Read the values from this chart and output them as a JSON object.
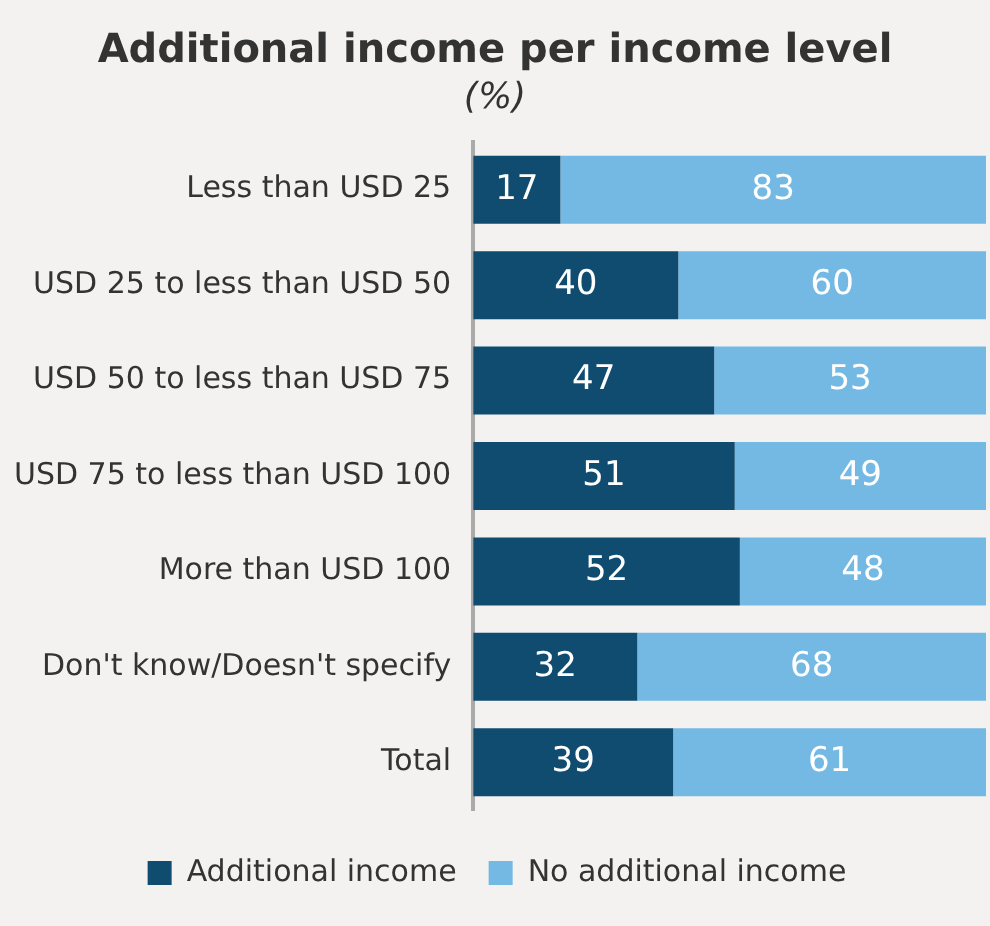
{
  "chart_data": {
    "type": "bar",
    "title": "Additional income per income level",
    "subtitle": "(%)",
    "orientation": "horizontal",
    "stacked": true,
    "categories": [
      "Less than USD 25",
      "USD 25 to less than USD 50",
      "USD 50 to less than USD 75",
      "USD 75 to less than USD 100",
      "More than USD 100",
      "Don't know/Doesn't specify",
      "Total"
    ],
    "series": [
      {
        "name": "Additional income",
        "color": "#0f4c70",
        "values": [
          17,
          40,
          47,
          51,
          52,
          32,
          39
        ]
      },
      {
        "name": "No additional income",
        "color": "#74b9e3",
        "values": [
          83,
          60,
          53,
          49,
          48,
          68,
          61
        ]
      }
    ],
    "xlim": [
      0,
      100
    ],
    "data_labels": true,
    "legend": "bottom",
    "grid": false
  }
}
